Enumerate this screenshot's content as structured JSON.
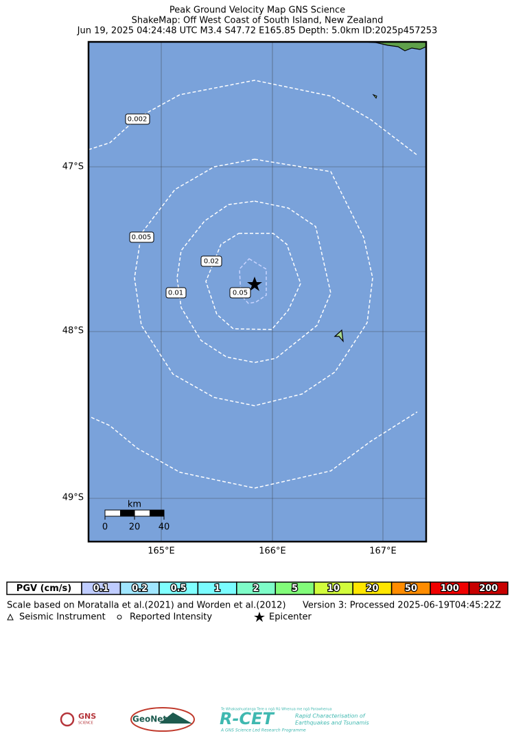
{
  "header": {
    "title": "Peak Ground Velocity Map GNS Science",
    "subtitle": "ShakeMap: Off West Coast of South Island, New Zealand",
    "event": "Jun 19, 2025 04:24:48 UTC M3.4 S47.72 E165.85 Depth: 5.0km ID:2025p457253"
  },
  "map": {
    "lat_labels": [
      "47°S",
      "48°S",
      "49°S"
    ],
    "lon_labels": [
      "165°E",
      "166°E",
      "167°E"
    ],
    "contour_labels": [
      "0.002",
      "0.005",
      "0.02",
      "0.01",
      "0.05"
    ],
    "scale_bar": {
      "unit": "km",
      "ticks": [
        "0",
        "20",
        "40"
      ]
    }
  },
  "legend": {
    "title": "PGV (cm/s)",
    "cells": [
      {
        "label": "0.1",
        "color": "#bfccff"
      },
      {
        "label": "0.2",
        "color": "#a0e6ff"
      },
      {
        "label": "0.5",
        "color": "#80ffff"
      },
      {
        "label": "1",
        "color": "#7afcff"
      },
      {
        "label": "2",
        "color": "#7efcc8"
      },
      {
        "label": "5",
        "color": "#82fc7a"
      },
      {
        "label": "10",
        "color": "#d2fc3c"
      },
      {
        "label": "20",
        "color": "#ffe600"
      },
      {
        "label": "50",
        "color": "#ff8c00"
      },
      {
        "label": "100",
        "color": "#f00000"
      },
      {
        "label": "200",
        "color": "#c80000"
      }
    ]
  },
  "footer": {
    "scale_note": "Scale based on Moratalla et al.(2021) and Worden et al.(2012)",
    "version": "Version 3: Processed 2025-06-19T04:45:22Z",
    "symbols": [
      "Seismic Instrument",
      "Reported Intensity",
      "Epicenter"
    ]
  },
  "logos": {
    "gns": "GNS",
    "gns_sub": "SCIENCE",
    "geonet": "GeoNet",
    "rcet": "R-CET",
    "rcet_maori": "Te Whakaahuatanga Tere o ngā Rū Whenua me ngā Parawhenua",
    "rcet_line1": "Rapid Characterisation of",
    "rcet_line2": "Earthquakes and Tsunamis",
    "rcet_footer": "A GNS Science Led Research Programme"
  }
}
